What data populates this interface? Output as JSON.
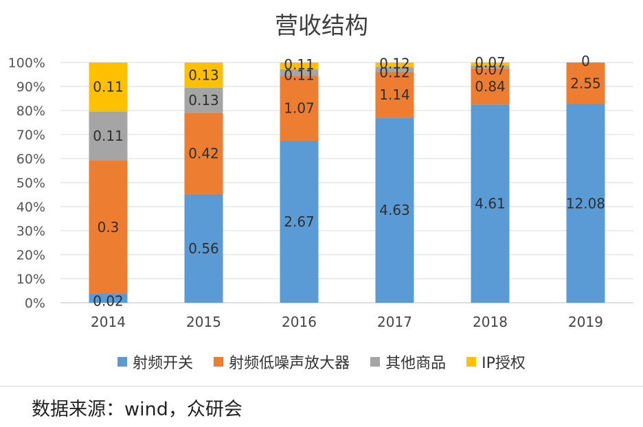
{
  "chart_data": {
    "type": "bar",
    "stacked": "percent",
    "title": "营收结构",
    "categories": [
      "2014",
      "2015",
      "2016",
      "2017",
      "2018",
      "2019"
    ],
    "y_ticks": [
      "0%",
      "10%",
      "20%",
      "30%",
      "40%",
      "50%",
      "60%",
      "70%",
      "80%",
      "90%",
      "100%"
    ],
    "ylim": [
      0,
      100
    ],
    "grid": true,
    "legend_position": "bottom",
    "series": [
      {
        "name": "射频开关",
        "color": "#5B9BD5",
        "labels": [
          "0.02",
          "0.56",
          "2.67",
          "4.63",
          "4.61",
          "12.08"
        ],
        "values": [
          0.02,
          0.56,
          2.67,
          4.63,
          4.61,
          12.08
        ]
      },
      {
        "name": "射频低噪声放大器",
        "color": "#ED7D31",
        "labels": [
          "0.3",
          "0.42",
          "1.07",
          "1.14",
          "0.84",
          "2.55"
        ],
        "values": [
          0.3,
          0.42,
          1.07,
          1.14,
          0.84,
          2.55
        ]
      },
      {
        "name": "其他商品",
        "color": "#A5A5A5",
        "labels": [
          "0.11",
          "0.13",
          "0.11",
          "0.12",
          "0.07",
          ""
        ],
        "values": [
          0.11,
          0.13,
          0.11,
          0.12,
          0.07,
          0
        ]
      },
      {
        "name": "IP授权",
        "color": "#FFC000",
        "labels": [
          "0.11",
          "0.13",
          "0.11",
          "0.12",
          "0.07",
          "0"
        ],
        "values": [
          0.11,
          0.13,
          0.11,
          0.12,
          0.07,
          0
        ]
      }
    ]
  },
  "source": "数据来源：wind，众研会"
}
